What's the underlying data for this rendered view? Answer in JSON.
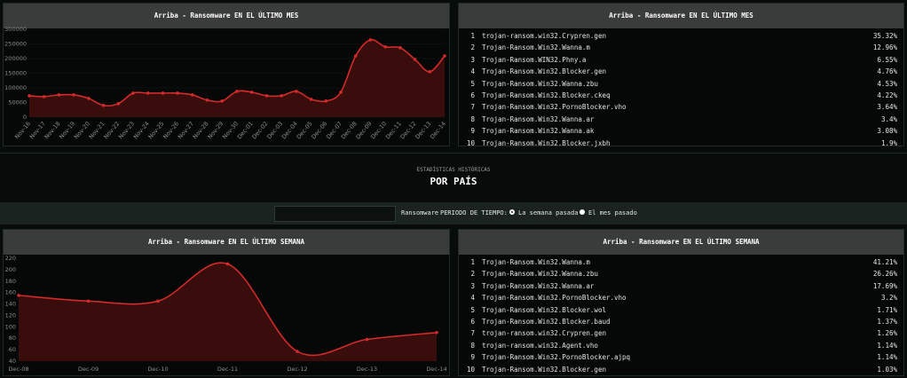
{
  "chart_data": [
    {
      "type": "line",
      "title": "Arriba - Ransomware EN EL ÚLTIMO MES",
      "categories": [
        "Nov-16",
        "Nov-17",
        "Nov-18",
        "Nov-19",
        "Nov-20",
        "Nov-21",
        "Nov-22",
        "Nov-23",
        "Nov-24",
        "Nov-25",
        "Nov-26",
        "Nov-27",
        "Nov-28",
        "Nov-29",
        "Nov-30",
        "Dec-01",
        "Dec-02",
        "Dec-03",
        "Dec-04",
        "Dec-05",
        "Dec-06",
        "Dec-07",
        "Dec-08",
        "Dec-09",
        "Dec-10",
        "Dec-11",
        "Dec-12",
        "Dec-13",
        "Dec-14"
      ],
      "values": [
        73000,
        70000,
        76000,
        76000,
        64000,
        40000,
        46000,
        82000,
        82000,
        82000,
        82000,
        76000,
        58000,
        55000,
        88000,
        85000,
        73000,
        73000,
        88000,
        61000,
        55000,
        85000,
        209000,
        264000,
        240000,
        237000,
        197000,
        155000,
        209000
      ],
      "color": "#d42a2a",
      "fill_color": "#3a0d0d",
      "area": true,
      "rotate_x_labels": true,
      "ylim": [
        0,
        300000
      ],
      "yticks": [
        0,
        50000,
        100000,
        150000,
        200000,
        250000,
        300000
      ],
      "grid": true
    },
    {
      "type": "line",
      "title": "Arriba - Ransomware EN EL ÚLTIMO SEMANA",
      "categories": [
        "Dec-08",
        "Dec-09",
        "Dec-10",
        "Dec-11",
        "Dec-12",
        "Dec-13",
        "Dec-14"
      ],
      "values": [
        155,
        145,
        145,
        210,
        57,
        78,
        90
      ],
      "color": "#d42a2a",
      "fill_color": "#3a0d0d",
      "area": true,
      "rotate_x_labels": false,
      "ylim": [
        40,
        220
      ],
      "yticks": [
        40,
        60,
        80,
        100,
        120,
        140,
        160,
        180,
        200,
        220
      ],
      "grid": false
    }
  ],
  "tables": [
    {
      "title": "Arriba - Ransomware EN EL ÚLTIMO MES",
      "rows": [
        [
          1,
          "trojan-ransom.win32.Crypren.gen",
          "35.32%"
        ],
        [
          2,
          "Trojan-Ransom.Win32.Wanna.m",
          "12.96%"
        ],
        [
          3,
          "Trojan-Ransom.WIN32.Phny.a",
          "6.55%"
        ],
        [
          4,
          "Trojan-Ransom.Win32.Blocker.gen",
          "4.76%"
        ],
        [
          5,
          "Trojan-Ransom.Win32.Wanna.zbu",
          "4.53%"
        ],
        [
          6,
          "Trojan-Ransom.Win32.Blocker.ckeq",
          "4.22%"
        ],
        [
          7,
          "Trojan-Ransom.Win32.PornoBlocker.vho",
          "3.64%"
        ],
        [
          8,
          "Trojan-Ransom.Win32.Wanna.ar",
          "3.4%"
        ],
        [
          9,
          "Trojan-Ransom.Win32.Wanna.ak",
          "3.08%"
        ],
        [
          10,
          "Trojan-Ransom.Win32.Blocker.jxbh",
          "1.9%"
        ]
      ]
    },
    {
      "title": "Arriba - Ransomware EN EL ÚLTIMO SEMANA",
      "rows": [
        [
          1,
          "Trojan-Ransom.Win32.Wanna.m",
          "41.21%"
        ],
        [
          2,
          "Trojan-Ransom.Win32.Wanna.zbu",
          "26.26%"
        ],
        [
          3,
          "Trojan-Ransom.Win32.Wanna.ar",
          "17.69%"
        ],
        [
          4,
          "Trojan-Ransom.Win32.PornoBlocker.vho",
          "3.2%"
        ],
        [
          5,
          "Trojan-Ransom.Win32.Blocker.wol",
          "1.71%"
        ],
        [
          6,
          "Trojan-Ransom.Win32.Blocker.baud",
          "1.37%"
        ],
        [
          7,
          "trojan-ransom.win32.Crypren.gen",
          "1.26%"
        ],
        [
          8,
          "trojan-ransom.win32.Agent.vho",
          "1.14%"
        ],
        [
          9,
          "Trojan-Ransom.Win32.PornoBlocker.ajpq",
          "1.14%"
        ],
        [
          10,
          "Trojan-Ransom.Win32.Blocker.gen",
          "1.03%"
        ]
      ]
    }
  ],
  "section": {
    "subtitle": "ESTADÍSTICAS HISTÓRICAS",
    "title": "POR PAÍS"
  },
  "filter": {
    "category": "Ransomware",
    "period_label": "PERIODO DE TIEMPO:",
    "options": [
      "La semana pasada",
      "El mes pasado"
    ]
  }
}
